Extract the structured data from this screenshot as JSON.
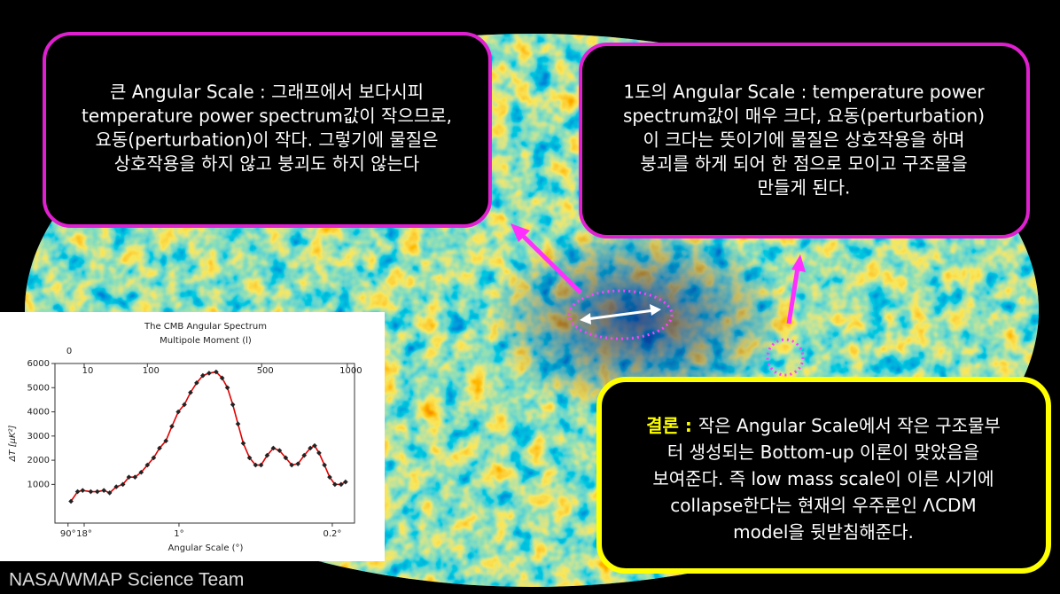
{
  "slide": {
    "left_box": {
      "lines": [
        "큰 Angular Scale : 그래프에서 보다시피",
        "temperature power spectrum값이 작으므로,",
        "요동(perturbation)이 작다. 그렇기에 물질은",
        "상호작용을 하지 않고 붕괴도 하지 않는다"
      ]
    },
    "right_box": {
      "lines": [
        "1도의 Angular Scale : temperature power",
        "spectrum값이 매우 크다, 요동(perturbation)",
        "이 크다는 뜻이기에 물질은 상호작용을 하며",
        "붕괴를 하게 되어 한 점으로 모이고 구조물을",
        "만들게 된다."
      ]
    },
    "conclusion_box": {
      "label": "결론 :",
      "lines": [
        "작은 Angular Scale에서 작은 구조물부",
        "터 생성되는 Bottom-up 이론이 맞았음을",
        "보여준다. 즉 low mass scale이 이른 시기에",
        "collapse한다는 현재의 우주론인 ΛCDM",
        "model을 뒷받침해준다."
      ]
    },
    "credit": "NASA/WMAP Science Team"
  },
  "chart_data": {
    "type": "line",
    "title": "The CMB Angular Spectrum",
    "x_label_top": "Multipole Moment (l)",
    "x_label": "Angular Scale (°)",
    "y_label": "ΔT [μK²]",
    "x": [
      3,
      6,
      9,
      15,
      21,
      28,
      35,
      44,
      54,
      64,
      75,
      87,
      100,
      114,
      128,
      144,
      160,
      178,
      196,
      215,
      235,
      256,
      278,
      304,
      327,
      348,
      370,
      392,
      415,
      443,
      471,
      497,
      527,
      558,
      590,
      623,
      656,
      691,
      727,
      763,
      789,
      816,
      850,
      883,
      917,
      958,
      988
    ],
    "series": [
      {
        "color": "#e00000",
        "values": [
          300,
          700,
          750,
          700,
          700,
          750,
          650,
          900,
          1000,
          1300,
          1300,
          1500,
          1800,
          2100,
          2500,
          2800,
          3400,
          4000,
          4300,
          4800,
          5200,
          5500,
          5600,
          5650,
          5400,
          5000,
          4300,
          3500,
          2700,
          2100,
          1800,
          1800,
          2200,
          2500,
          2400,
          2100,
          1800,
          1850,
          2200,
          2500,
          2600,
          2300,
          1800,
          1300,
          1000,
          1000,
          1100
        ]
      }
    ],
    "marker_color": "#222222",
    "xscale": "sqrt",
    "xlim": [
      0,
      1050
    ],
    "xticks": [
      0,
      10,
      100,
      500,
      1000
    ],
    "angle_ticks": [
      {
        "value": 90,
        "label": "90°"
      },
      {
        "value": 18,
        "label": "18°"
      },
      {
        "value": 1,
        "label": "1°"
      },
      {
        "value": 0.2,
        "label": "0.2°"
      }
    ],
    "ylim": [
      -600,
      6000
    ],
    "yticks": [
      1000,
      2000,
      3000,
      4000,
      5000,
      6000
    ]
  }
}
